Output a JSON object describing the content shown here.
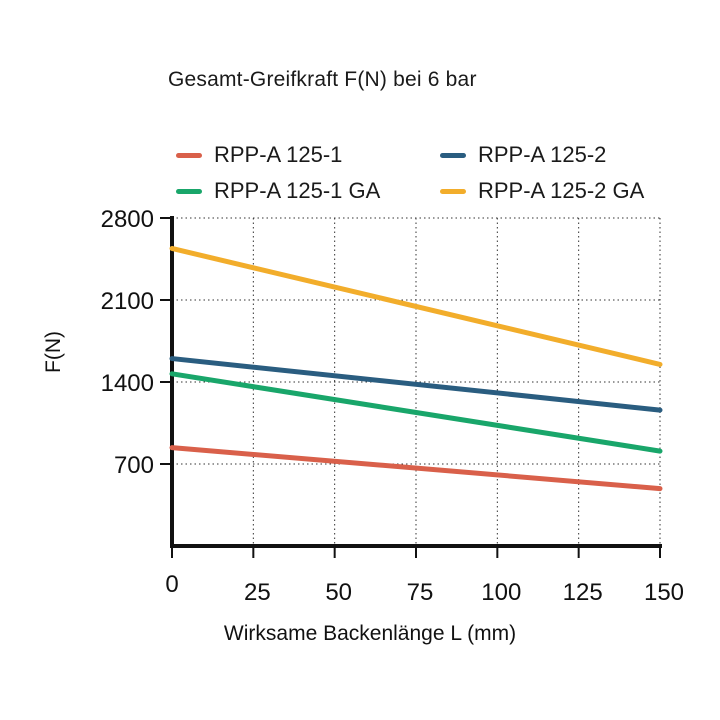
{
  "chart_data": {
    "type": "line",
    "title": "Gesamt-Greifkraft F(N) bei 6 bar",
    "xlabel": "Wirksame Backenlänge L (mm)",
    "ylabel": "F(N)",
    "x": [
      0,
      150
    ],
    "xticks": [
      0,
      25,
      50,
      75,
      100,
      125,
      150
    ],
    "xlim": [
      0,
      150
    ],
    "yticks": [
      700,
      1400,
      2100,
      2800
    ],
    "ylim": [
      0,
      2800
    ],
    "grid": true,
    "legend_position": "top",
    "series": [
      {
        "name": "RPP-A 125-1",
        "color": "#d9604a",
        "values": [
          840,
          490
        ]
      },
      {
        "name": "RPP-A 125-2",
        "color": "#2a5d80",
        "values": [
          1600,
          1160
        ]
      },
      {
        "name": "RPP-A 125-1 GA",
        "color": "#19a66a",
        "values": [
          1470,
          810
        ]
      },
      {
        "name": "RPP-A 125-2 GA",
        "color": "#f2ad2b",
        "values": [
          2540,
          1550
        ]
      }
    ]
  }
}
